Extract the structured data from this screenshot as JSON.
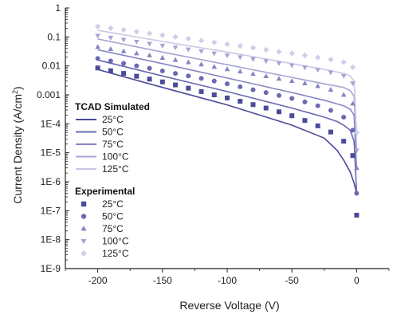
{
  "chart_data": {
    "type": "line",
    "xlabel": "Reverse Voltage (V)",
    "ylabel_main": "Current Density (A/cm",
    "ylabel_sup": "2",
    "ylabel_tail": ")",
    "xlim": [
      -225,
      25
    ],
    "ylim": [
      1e-09,
      1
    ],
    "yscale": "log",
    "x_ticks": [
      -200,
      -150,
      -100,
      -50,
      0
    ],
    "x_tick_labels": [
      "-200",
      "-150",
      "-100",
      "-50",
      "0"
    ],
    "y_ticks": [
      1e-09,
      1e-08,
      1e-07,
      1e-06,
      1e-05,
      0.0001,
      0.001,
      0.01,
      0.1,
      1
    ],
    "y_tick_labels": [
      "1E-9",
      "1E-8",
      "1E-7",
      "1E-6",
      "1E-5",
      "1E-4",
      "0.001",
      "0.01",
      "0.1",
      "1"
    ],
    "legend_position": "bottom-left",
    "legend_group_simulated": "TCAD  Simulated",
    "legend_group_experimental": "Experimental",
    "simulated_series": [
      {
        "name": "25°C",
        "color": "#4b4a9a",
        "points": [
          [
            -200,
            0.0075
          ],
          [
            -150,
            0.0018
          ],
          [
            -100,
            0.00045
          ],
          [
            -50,
            9e-05
          ],
          [
            -25,
            3.2e-05
          ],
          [
            -15,
            1.2e-05
          ],
          [
            -10,
            5.5e-06
          ],
          [
            -5,
            2.2e-06
          ],
          [
            -2,
            9e-07
          ],
          [
            0,
            4e-07
          ]
        ]
      },
      {
        "name": "50°C",
        "color": "#6a69b2",
        "points": [
          [
            -200,
            0.016
          ],
          [
            -150,
            0.0045
          ],
          [
            -100,
            0.0013
          ],
          [
            -50,
            0.00035
          ],
          [
            -25,
            0.00017
          ],
          [
            -15,
            0.00012
          ],
          [
            -10,
            9e-05
          ],
          [
            -5,
            6e-05
          ],
          [
            -2,
            2.5e-05
          ],
          [
            0,
            4e-07
          ]
        ]
      },
      {
        "name": "75°C",
        "color": "#8685c4",
        "points": [
          [
            -200,
            0.036
          ],
          [
            -150,
            0.012
          ],
          [
            -100,
            0.0038
          ],
          [
            -50,
            0.0012
          ],
          [
            -25,
            0.00065
          ],
          [
            -10,
            0.00042
          ],
          [
            -5,
            0.00032
          ],
          [
            -2,
            0.0002
          ],
          [
            0,
            2.5e-06
          ]
        ]
      },
      {
        "name": "100°C",
        "color": "#a5a4d4",
        "points": [
          [
            -200,
            0.085
          ],
          [
            -150,
            0.03
          ],
          [
            -100,
            0.011
          ],
          [
            -50,
            0.004
          ],
          [
            -25,
            0.0024
          ],
          [
            -10,
            0.0018
          ],
          [
            -5,
            0.0014
          ],
          [
            -2,
            0.0009
          ],
          [
            0,
            1e-05
          ]
        ]
      },
      {
        "name": "125°C",
        "color": "#c9c8e6",
        "points": [
          [
            -200,
            0.17
          ],
          [
            -150,
            0.07
          ],
          [
            -100,
            0.03
          ],
          [
            -50,
            0.012
          ],
          [
            -25,
            0.0075
          ],
          [
            -10,
            0.0055
          ],
          [
            -5,
            0.0045
          ],
          [
            -2,
            0.003
          ],
          [
            0,
            4e-05
          ]
        ]
      }
    ],
    "experimental_series": [
      {
        "name": "25°C",
        "marker": "square",
        "color": "#4b4a9a",
        "points": [
          [
            -200,
            0.0085
          ],
          [
            -190,
            0.0068
          ],
          [
            -180,
            0.0055
          ],
          [
            -170,
            0.0044
          ],
          [
            -160,
            0.0035
          ],
          [
            -150,
            0.0028
          ],
          [
            -140,
            0.0022
          ],
          [
            -130,
            0.0017
          ],
          [
            -120,
            0.0013
          ],
          [
            -110,
            0.001
          ],
          [
            -100,
            0.00078
          ],
          [
            -90,
            0.0006
          ],
          [
            -80,
            0.00046
          ],
          [
            -70,
            0.00035
          ],
          [
            -60,
            0.00026
          ],
          [
            -50,
            0.00019
          ],
          [
            -40,
            0.00013
          ],
          [
            -30,
            8.5e-05
          ],
          [
            -20,
            5.2e-05
          ],
          [
            -10,
            2.5e-05
          ],
          [
            -3,
            8e-06
          ],
          [
            0,
            7e-08
          ]
        ]
      },
      {
        "name": "50°C",
        "marker": "circle",
        "color": "#6a69b2",
        "points": [
          [
            -200,
            0.018
          ],
          [
            -190,
            0.0148
          ],
          [
            -180,
            0.0122
          ],
          [
            -170,
            0.01
          ],
          [
            -160,
            0.0082
          ],
          [
            -150,
            0.0067
          ],
          [
            -140,
            0.0055
          ],
          [
            -130,
            0.0045
          ],
          [
            -120,
            0.0037
          ],
          [
            -110,
            0.003
          ],
          [
            -100,
            0.0024
          ],
          [
            -90,
            0.0019
          ],
          [
            -80,
            0.0015
          ],
          [
            -70,
            0.0012
          ],
          [
            -60,
            0.00095
          ],
          [
            -50,
            0.00075
          ],
          [
            -40,
            0.00057
          ],
          [
            -30,
            0.00042
          ],
          [
            -20,
            0.00029
          ],
          [
            -10,
            0.00017
          ],
          [
            -3,
            6e-05
          ],
          [
            0,
            4e-07
          ]
        ]
      },
      {
        "name": "75°C",
        "marker": "triangle-up",
        "color": "#8685c4",
        "points": [
          [
            -200,
            0.045
          ],
          [
            -190,
            0.038
          ],
          [
            -180,
            0.032
          ],
          [
            -170,
            0.027
          ],
          [
            -160,
            0.023
          ],
          [
            -150,
            0.019
          ],
          [
            -140,
            0.016
          ],
          [
            -130,
            0.0134
          ],
          [
            -120,
            0.0112
          ],
          [
            -110,
            0.0093
          ],
          [
            -100,
            0.0077
          ],
          [
            -90,
            0.0064
          ],
          [
            -80,
            0.0053
          ],
          [
            -70,
            0.0044
          ],
          [
            -60,
            0.0036
          ],
          [
            -50,
            0.003
          ],
          [
            -40,
            0.0025
          ],
          [
            -30,
            0.002
          ],
          [
            -20,
            0.0015
          ],
          [
            -10,
            0.001
          ],
          [
            -3,
            0.0005
          ],
          [
            0,
            3e-06
          ]
        ]
      },
      {
        "name": "100°C",
        "marker": "triangle-down",
        "color": "#a5a4d4",
        "points": [
          [
            -200,
            0.11
          ],
          [
            -190,
            0.094
          ],
          [
            -180,
            0.08
          ],
          [
            -170,
            0.068
          ],
          [
            -160,
            0.058
          ],
          [
            -150,
            0.05
          ],
          [
            -140,
            0.043
          ],
          [
            -130,
            0.037
          ],
          [
            -120,
            0.032
          ],
          [
            -110,
            0.027
          ],
          [
            -100,
            0.023
          ],
          [
            -90,
            0.02
          ],
          [
            -80,
            0.017
          ],
          [
            -70,
            0.0145
          ],
          [
            -60,
            0.0123
          ],
          [
            -50,
            0.0104
          ],
          [
            -40,
            0.0088
          ],
          [
            -30,
            0.0073
          ],
          [
            -20,
            0.006
          ],
          [
            -10,
            0.0045
          ],
          [
            -3,
            0.0025
          ],
          [
            0,
            1.2e-05
          ]
        ]
      },
      {
        "name": "125°C",
        "marker": "diamond",
        "color": "#cfcee8",
        "points": [
          [
            -200,
            0.23
          ],
          [
            -190,
            0.2
          ],
          [
            -180,
            0.175
          ],
          [
            -170,
            0.152
          ],
          [
            -160,
            0.132
          ],
          [
            -150,
            0.115
          ],
          [
            -140,
            0.1
          ],
          [
            -130,
            0.087
          ],
          [
            -120,
            0.075
          ],
          [
            -110,
            0.065
          ],
          [
            -100,
            0.056
          ],
          [
            -90,
            0.049
          ],
          [
            -80,
            0.042
          ],
          [
            -70,
            0.036
          ],
          [
            -60,
            0.031
          ],
          [
            -50,
            0.027
          ],
          [
            -40,
            0.023
          ],
          [
            -30,
            0.0195
          ],
          [
            -20,
            0.0165
          ],
          [
            -10,
            0.0135
          ],
          [
            -3,
            0.009
          ],
          [
            0,
            5e-05
          ]
        ]
      }
    ]
  }
}
